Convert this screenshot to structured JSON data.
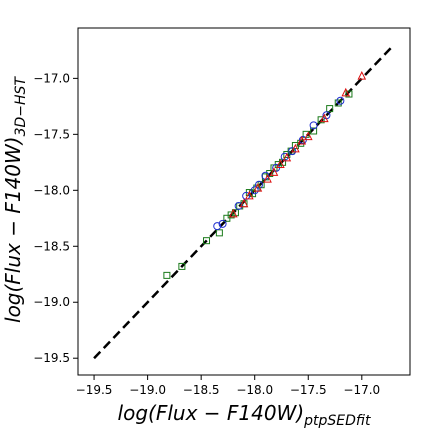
{
  "chart_data": {
    "type": "scatter",
    "title": "",
    "xlabel_main": "log(Flux − F140W)",
    "xlabel_sub": "ptpSEDfit",
    "ylabel_main": "log(Flux − F140W)",
    "ylabel_sub": "3D−HST",
    "xlim": [
      -19.65,
      -16.55
    ],
    "ylim": [
      -19.65,
      -16.55
    ],
    "xticks": [
      -19.5,
      -19.0,
      -18.5,
      -18.0,
      -17.5,
      -17.0
    ],
    "yticks": [
      -19.5,
      -19.0,
      -18.5,
      -18.0,
      -17.5,
      -17.0
    ],
    "xtick_labels": [
      "−19.5",
      "−19.0",
      "−18.5",
      "−18.0",
      "−17.5",
      "−17.0"
    ],
    "ytick_labels": [
      "−19.5",
      "−19.0",
      "−18.5",
      "−18.0",
      "−17.5",
      "−17.0"
    ],
    "grid": false,
    "one_to_one_line": {
      "x": [
        -19.5,
        -16.7
      ],
      "y": [
        -19.5,
        -16.7
      ],
      "style": "dashed",
      "color": "#000000"
    },
    "series": [
      {
        "marker": "square",
        "color": "#1a7a1a",
        "x": [
          -18.82,
          -18.68,
          -18.45,
          -18.33,
          -18.26,
          -18.22,
          -18.18,
          -18.14,
          -18.1,
          -18.05,
          -18.02,
          -17.98,
          -17.94,
          -17.9,
          -17.86,
          -17.82,
          -17.78,
          -17.74,
          -17.7,
          -17.66,
          -17.62,
          -17.57,
          -17.52,
          -17.45,
          -17.38,
          -17.3,
          -17.22,
          -17.12
        ],
        "y": [
          -18.76,
          -18.68,
          -18.45,
          -18.38,
          -18.25,
          -18.22,
          -18.2,
          -18.14,
          -18.12,
          -18.02,
          -18.03,
          -17.98,
          -17.95,
          -17.88,
          -17.85,
          -17.8,
          -17.77,
          -17.75,
          -17.68,
          -17.65,
          -17.6,
          -17.58,
          -17.5,
          -17.47,
          -17.37,
          -17.27,
          -17.22,
          -17.14
        ]
      },
      {
        "marker": "circle",
        "color": "#1f2fd0",
        "x": [
          -18.35,
          -18.3,
          -18.15,
          -18.08,
          -18.0,
          -17.96,
          -17.9,
          -17.8,
          -17.72,
          -17.65,
          -17.55,
          -17.45,
          -17.33,
          -17.2
        ],
        "y": [
          -18.32,
          -18.3,
          -18.14,
          -18.05,
          -18.0,
          -17.95,
          -17.87,
          -17.8,
          -17.7,
          -17.65,
          -17.55,
          -17.42,
          -17.33,
          -17.2
        ]
      },
      {
        "marker": "triangle",
        "color": "#dd1111",
        "x": [
          -18.2,
          -18.1,
          -18.05,
          -17.97,
          -17.88,
          -17.82,
          -17.76,
          -17.7,
          -17.62,
          -17.56,
          -17.5,
          -17.35,
          -17.15,
          -17.0
        ],
        "y": [
          -18.21,
          -18.12,
          -18.05,
          -17.98,
          -17.9,
          -17.84,
          -17.77,
          -17.71,
          -17.63,
          -17.56,
          -17.52,
          -17.36,
          -17.13,
          -16.98
        ]
      }
    ]
  }
}
